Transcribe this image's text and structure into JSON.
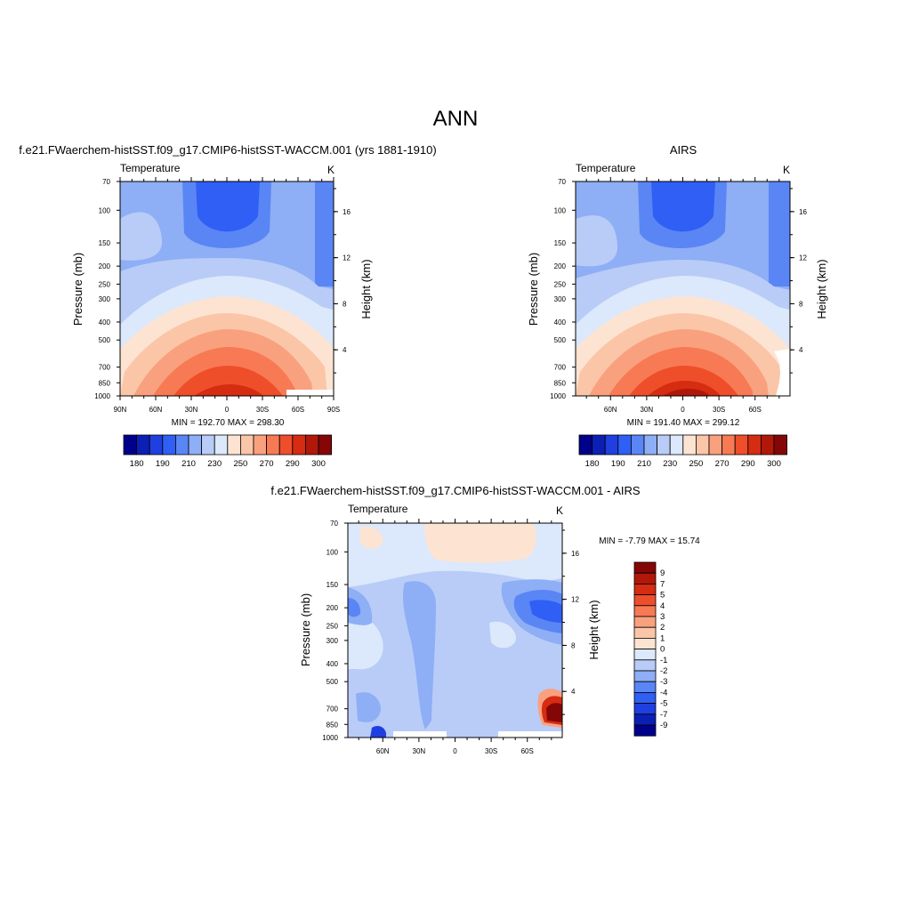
{
  "page": {
    "title": "ANN",
    "diff_title": "f.e21.FWaerchem-histSST.f09_g17.CMIP6-histSST-WACCM.001 - AIRS"
  },
  "chart_data": [
    {
      "type": "contour",
      "id": "model",
      "title": "f.e21.FWaerchem-histSST.f09_g17.CMIP6-histSST-WACCM.001 (yrs 1881-1910)",
      "variable": "Temperature",
      "units": "K",
      "ylabel": "Pressure (mb)",
      "y2label": "Height (km)",
      "x_ticks": [
        "90N",
        "60N",
        "30N",
        "0",
        "30S",
        "60S",
        "90S"
      ],
      "p_ticks": [
        70,
        100,
        150,
        200,
        250,
        300,
        400,
        500,
        700,
        850,
        1000
      ],
      "h_ticks": [
        16,
        12,
        8,
        4
      ],
      "stats": "MIN = 192.70  MAX = 298.30",
      "min": 192.7,
      "max": 298.3,
      "colorbar_labels": [
        "180",
        "190",
        "210",
        "230",
        "250",
        "270",
        "290",
        "300"
      ]
    },
    {
      "type": "contour",
      "id": "obs",
      "title": "AIRS",
      "variable": "Temperature",
      "units": "K",
      "ylabel": "Pressure (mb)",
      "y2label": "Height (km)",
      "x_ticks": [
        "60N",
        "30N",
        "0",
        "30S",
        "60S"
      ],
      "p_ticks": [
        70,
        100,
        150,
        200,
        250,
        300,
        400,
        500,
        700,
        850,
        1000
      ],
      "h_ticks": [
        16,
        12,
        8,
        4
      ],
      "stats": "MIN = 191.40  MAX = 299.12",
      "min": 191.4,
      "max": 299.12,
      "colorbar_labels": [
        "180",
        "190",
        "210",
        "230",
        "250",
        "270",
        "290",
        "300"
      ]
    },
    {
      "type": "contour",
      "id": "diff",
      "variable": "Temperature",
      "units": "K",
      "ylabel": "Pressure (mb)",
      "y2label": "Height (km)",
      "x_ticks": [
        "60N",
        "30N",
        "0",
        "30S",
        "60S"
      ],
      "p_ticks": [
        70,
        100,
        150,
        200,
        250,
        300,
        400,
        500,
        700,
        850,
        1000
      ],
      "h_ticks": [
        16,
        12,
        8,
        4
      ],
      "stats": "MIN =  -7.79  MAX =  15.74",
      "min": -7.79,
      "max": 15.74,
      "colorbar_labels": [
        "9",
        "7",
        "5",
        "4",
        "3",
        "2",
        "1",
        "0",
        "-1",
        "-2",
        "-3",
        "-4",
        "-5",
        "-7",
        "-9"
      ]
    }
  ],
  "colors": {
    "abs_scale": [
      "#00008b",
      "#0c1fb5",
      "#1f3fe0",
      "#2f5ff5",
      "#5a85f5",
      "#8eaef5",
      "#b8ccf7",
      "#dce8fb",
      "#fde4d2",
      "#fbc6a8",
      "#f9a17e",
      "#f77a54",
      "#ef4e2b",
      "#d52c12",
      "#b1180a",
      "#850606"
    ],
    "diff_scale": [
      "#850606",
      "#b1180a",
      "#d52c12",
      "#ef4e2b",
      "#f77a54",
      "#f9a17e",
      "#fbc6a8",
      "#fde4d2",
      "#dce8fb",
      "#b8ccf7",
      "#8eaef5",
      "#5a85f5",
      "#2f5ff5",
      "#1f3fe0",
      "#0c1fb5",
      "#00008b"
    ]
  }
}
